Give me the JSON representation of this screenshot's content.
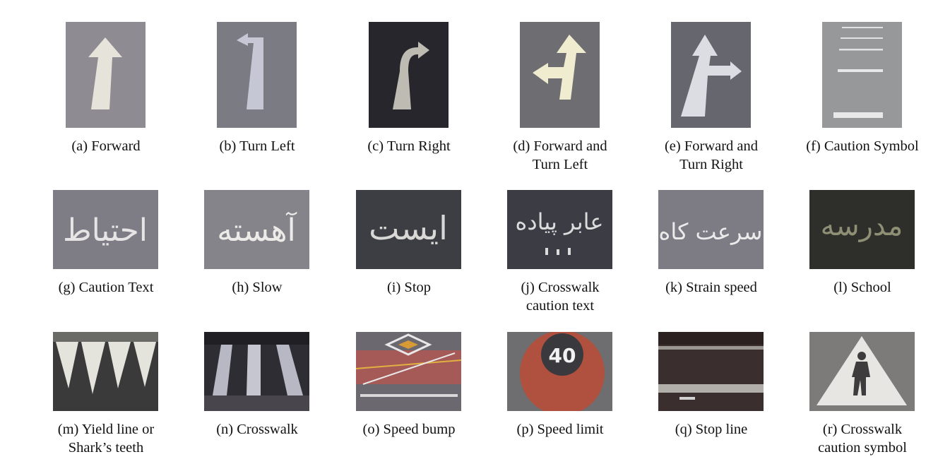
{
  "panels": [
    {
      "caption": "(a) Forward",
      "icon": "forward-arrow-marking"
    },
    {
      "caption": "(b) Turn Left",
      "icon": "turn-left-arrow-marking"
    },
    {
      "caption": "(c) Turn Right",
      "icon": "turn-right-arrow-marking"
    },
    {
      "caption": "(d) Forward and",
      "caption2": "Turn Left",
      "icon": "forward-and-left-arrow-marking"
    },
    {
      "caption": "(e) Forward and",
      "caption2": "Turn Right",
      "icon": "forward-and-right-arrow-marking"
    },
    {
      "caption": "(f) Caution Symbol",
      "icon": "caution-lines-marking"
    },
    {
      "caption": "(g) Caution Text",
      "icon": "caution-text-marking",
      "word": "احتیاط"
    },
    {
      "caption": "(h) Slow",
      "icon": "slow-text-marking",
      "word": "آهسته"
    },
    {
      "caption": "(i) Stop",
      "icon": "stop-text-marking",
      "word": "ایست"
    },
    {
      "caption": "(j) Crosswalk",
      "caption2": "caution text",
      "icon": "crosswalk-text-marking",
      "word": "عابر پیاده"
    },
    {
      "caption": "(k) Strain speed",
      "icon": "speed-bump-text-marking",
      "word": "سرعت کاه"
    },
    {
      "caption": "(l) School",
      "icon": "school-text-marking",
      "word": "مدرسه"
    },
    {
      "caption": "(m) Yield line or",
      "caption2": "Shark’s teeth",
      "icon": "yield-teeth-marking"
    },
    {
      "caption": "(n) Crosswalk",
      "icon": "crosswalk-stripes-marking"
    },
    {
      "caption": "(o) Speed bump",
      "icon": "speed-bump-marking"
    },
    {
      "caption": "(p) Speed limit",
      "icon": "speed-limit-marking",
      "number": "40"
    },
    {
      "caption": "(q) Stop line",
      "icon": "stop-line-marking"
    },
    {
      "caption": "(r) Crosswalk",
      "caption2": "caution symbol",
      "icon": "pedestrian-triangle-marking"
    }
  ]
}
